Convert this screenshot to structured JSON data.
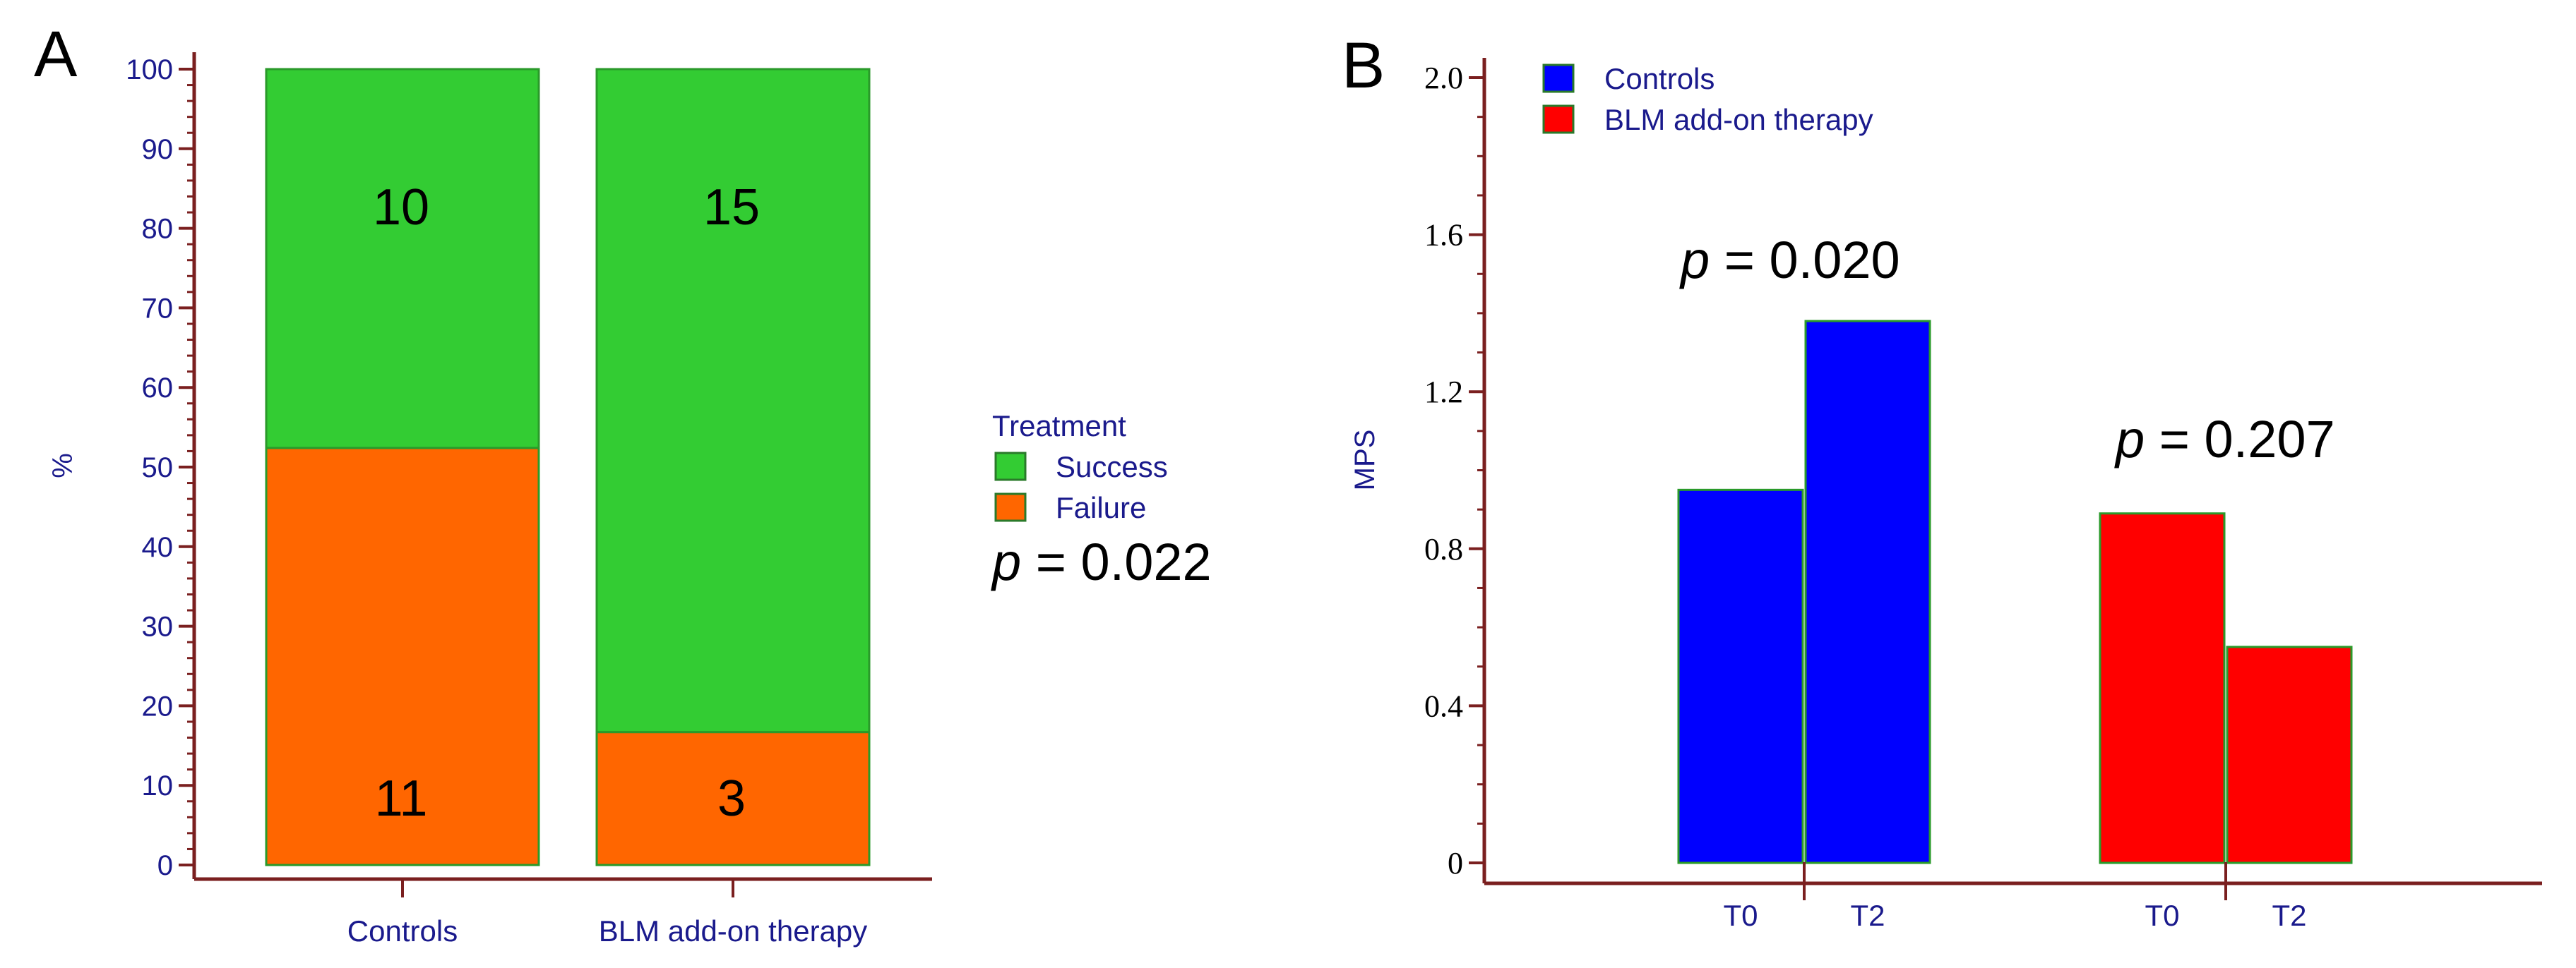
{
  "chart_data": [
    {
      "panel": "A",
      "type": "bar",
      "stacked": true,
      "categories": [
        "Controls",
        "BLM add-on therapy"
      ],
      "ylabel": "%",
      "ylim": [
        0,
        100
      ],
      "yticks": [
        "0",
        "10",
        "20",
        "30",
        "40",
        "50",
        "60",
        "70",
        "80",
        "90",
        "100"
      ],
      "legend": {
        "title": "Treatment",
        "position": "right",
        "entries": [
          {
            "name": "Success",
            "color": "#33cc33"
          },
          {
            "name": "Failure",
            "color": "#ff6600"
          }
        ]
      },
      "series": [
        {
          "name": "Failure",
          "values": [
            52.4,
            16.7
          ],
          "labels": [
            "11",
            "3"
          ],
          "color": "#ff6600"
        },
        {
          "name": "Success",
          "values": [
            47.6,
            83.3
          ],
          "labels": [
            "10",
            "15"
          ],
          "color": "#33cc33"
        }
      ],
      "annotation": {
        "italic": "p",
        "rest": " = 0.022"
      }
    },
    {
      "panel": "B",
      "type": "bar",
      "ylabel": "MPS",
      "ylim": [
        0,
        2.0
      ],
      "yticks": [
        "0",
        "0.4",
        "0.8",
        "1.2",
        "1.6",
        "2.0"
      ],
      "legend": {
        "position": "top-left",
        "entries": [
          {
            "name": "Controls",
            "color": "#0000ff"
          },
          {
            "name": "BLM add-on therapy",
            "color": "#ff0000"
          }
        ]
      },
      "groups": [
        {
          "series": "Controls",
          "categories": [
            "T0",
            "T2"
          ],
          "values": [
            0.95,
            1.38
          ],
          "color": "#0000ff",
          "annotation": {
            "italic": "p",
            "rest": " = 0.020"
          }
        },
        {
          "series": "BLM add-on therapy",
          "categories": [
            "T0",
            "T2"
          ],
          "values": [
            0.89,
            0.55
          ],
          "color": "#ff0000",
          "annotation": {
            "italic": "p",
            "rest": " = 0.207"
          }
        }
      ]
    }
  ],
  "panels": {
    "a": "A",
    "b": "B"
  }
}
